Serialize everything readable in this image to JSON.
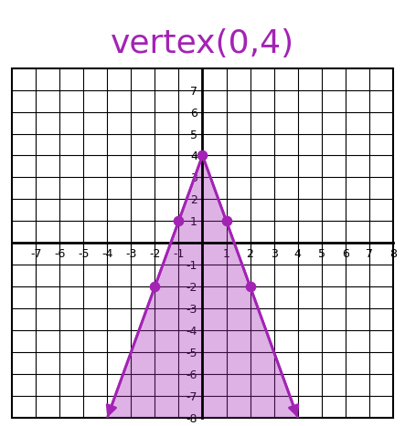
{
  "chart_data": {
    "type": "line",
    "title": "vertex(0,4)",
    "series": [
      {
        "type": "area",
        "x": [
          -4,
          0,
          4
        ],
        "values": [
          -8,
          4,
          -8
        ],
        "color": "#a323b5"
      },
      {
        "type": "line",
        "x": [
          -4,
          0,
          4
        ],
        "values": [
          -8,
          4,
          -8
        ],
        "color": "#a323b5"
      },
      {
        "type": "scatter",
        "x": [
          -2,
          -1,
          0,
          1,
          2
        ],
        "values": [
          -2,
          1,
          4,
          1,
          -2
        ],
        "color": "#a323b5",
        "marker": "circle"
      }
    ],
    "xlim": [
      -8,
      8
    ],
    "ylim": [
      -8,
      8
    ],
    "xticks": [
      -7,
      -6,
      -5,
      -4,
      -3,
      -2,
      -1,
      1,
      2,
      3,
      4,
      5,
      6,
      7,
      8
    ],
    "yticks": [
      -8,
      -7,
      -6,
      -5,
      -4,
      -3,
      -2,
      -1,
      1,
      2,
      3,
      4,
      5,
      6,
      7
    ],
    "grid": true
  }
}
